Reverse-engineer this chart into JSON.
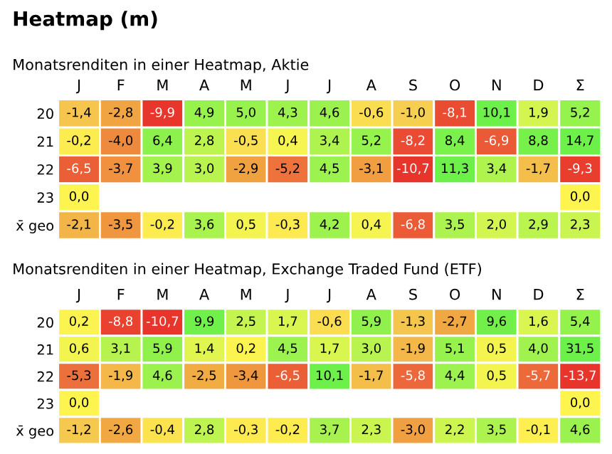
{
  "chart_data": [
    {
      "type": "heatmap",
      "title": "Heatmap (m)",
      "subtitle": "Monatsrenditen in einer Heatmap, Aktie",
      "categories": [
        "J",
        "F",
        "M",
        "A",
        "M",
        "J",
        "J",
        "A",
        "S",
        "O",
        "N",
        "D",
        "Σ"
      ],
      "y_categories": [
        "20",
        "21",
        "22",
        "23",
        "x̄ geo"
      ],
      "cells": [
        [
          -1.4,
          -2.8,
          -9.9,
          4.9,
          5.0,
          4.3,
          4.6,
          -0.6,
          -1.0,
          -8.1,
          10.1,
          1.9,
          5.2
        ],
        [
          -0.2,
          -4.0,
          6.4,
          2.8,
          -0.5,
          0.4,
          3.4,
          5.2,
          -8.2,
          8.4,
          -6.9,
          8.8,
          14.7
        ],
        [
          -6.5,
          -3.7,
          3.9,
          3.0,
          -2.9,
          -5.2,
          4.5,
          -3.1,
          -10.7,
          11.3,
          3.4,
          -1.7,
          -9.3
        ],
        [
          0.0,
          null,
          null,
          null,
          null,
          null,
          null,
          null,
          null,
          null,
          null,
          null,
          0.0
        ],
        [
          -2.1,
          -3.5,
          -0.2,
          3.6,
          0.5,
          -0.3,
          4.2,
          0.4,
          -6.8,
          3.5,
          2.0,
          2.9,
          2.3
        ]
      ],
      "cell_labels": [
        [
          "-1,4",
          "-2,8",
          "-9,9",
          "4,9",
          "5,0",
          "4,3",
          "4,6",
          "-0,6",
          "-1,0",
          "-8,1",
          "10,1",
          "1,9",
          "5,2"
        ],
        [
          "-0,2",
          "-4,0",
          "6,4",
          "2,8",
          "-0,5",
          "0,4",
          "3,4",
          "5,2",
          "-8,2",
          "8,4",
          "-6,9",
          "8,8",
          "14,7"
        ],
        [
          "-6,5",
          "-3,7",
          "3,9",
          "3,0",
          "-2,9",
          "-5,2",
          "4,5",
          "-3,1",
          "-10,7",
          "11,3",
          "3,4",
          "-1,7",
          "-9,3"
        ],
        [
          "0,0",
          null,
          null,
          null,
          null,
          null,
          null,
          null,
          null,
          null,
          null,
          null,
          "0,0"
        ],
        [
          "-2,1",
          "-3,5",
          "-0,2",
          "3,6",
          "0,5",
          "-0,3",
          "4,2",
          "0,4",
          "-6,8",
          "3,5",
          "2,0",
          "2,9",
          "2,3"
        ]
      ]
    },
    {
      "type": "heatmap",
      "title": "Monatsrenditen in einer Heatmap, Exchange Traded Fund (ETF)",
      "categories": [
        "J",
        "F",
        "M",
        "A",
        "M",
        "J",
        "J",
        "A",
        "S",
        "O",
        "N",
        "D",
        "Σ"
      ],
      "y_categories": [
        "20",
        "21",
        "22",
        "23",
        "x̄ geo"
      ],
      "cells": [
        [
          0.2,
          -8.8,
          -10.7,
          9.9,
          2.5,
          1.7,
          -0.6,
          5.9,
          -1.3,
          -2.7,
          9.6,
          1.6,
          5.4
        ],
        [
          0.6,
          3.1,
          5.9,
          1.4,
          0.2,
          4.5,
          1.7,
          3.0,
          -1.9,
          5.1,
          0.5,
          4.0,
          31.5
        ],
        [
          -5.3,
          -1.9,
          4.6,
          -2.5,
          -3.4,
          -6.5,
          10.1,
          -1.7,
          -5.8,
          4.4,
          0.5,
          -5.7,
          -13.7
        ],
        [
          0.0,
          null,
          null,
          null,
          null,
          null,
          null,
          null,
          null,
          null,
          null,
          null,
          0.0
        ],
        [
          -1.2,
          -2.6,
          -0.4,
          2.8,
          -0.3,
          -0.2,
          3.7,
          2.3,
          -3.0,
          2.2,
          3.5,
          -0.1,
          4.6
        ]
      ],
      "cell_labels": [
        [
          "0,2",
          "-8,8",
          "-10,7",
          "9,9",
          "2,5",
          "1,7",
          "-0,6",
          "5,9",
          "-1,3",
          "-2,7",
          "9,6",
          "1,6",
          "5,4"
        ],
        [
          "0,6",
          "3,1",
          "5,9",
          "1,4",
          "0,2",
          "4,5",
          "1,7",
          "3,0",
          "-1,9",
          "5,1",
          "0,5",
          "4,0",
          "31,5"
        ],
        [
          "-5,3",
          "-1,9",
          "4,6",
          "-2,5",
          "-3,4",
          "-6,5",
          "10,1",
          "-1,7",
          "-5,8",
          "4,4",
          "0,5",
          "-5,7",
          "-13,7"
        ],
        [
          "0,0",
          null,
          null,
          null,
          null,
          null,
          null,
          null,
          null,
          null,
          null,
          null,
          "0,0"
        ],
        [
          "-1,2",
          "-2,6",
          "-0,4",
          "2,8",
          "-0,3",
          "-0,2",
          "3,7",
          "2,3",
          "-3,0",
          "2,2",
          "3,5",
          "-0,1",
          "4,6"
        ]
      ]
    }
  ]
}
